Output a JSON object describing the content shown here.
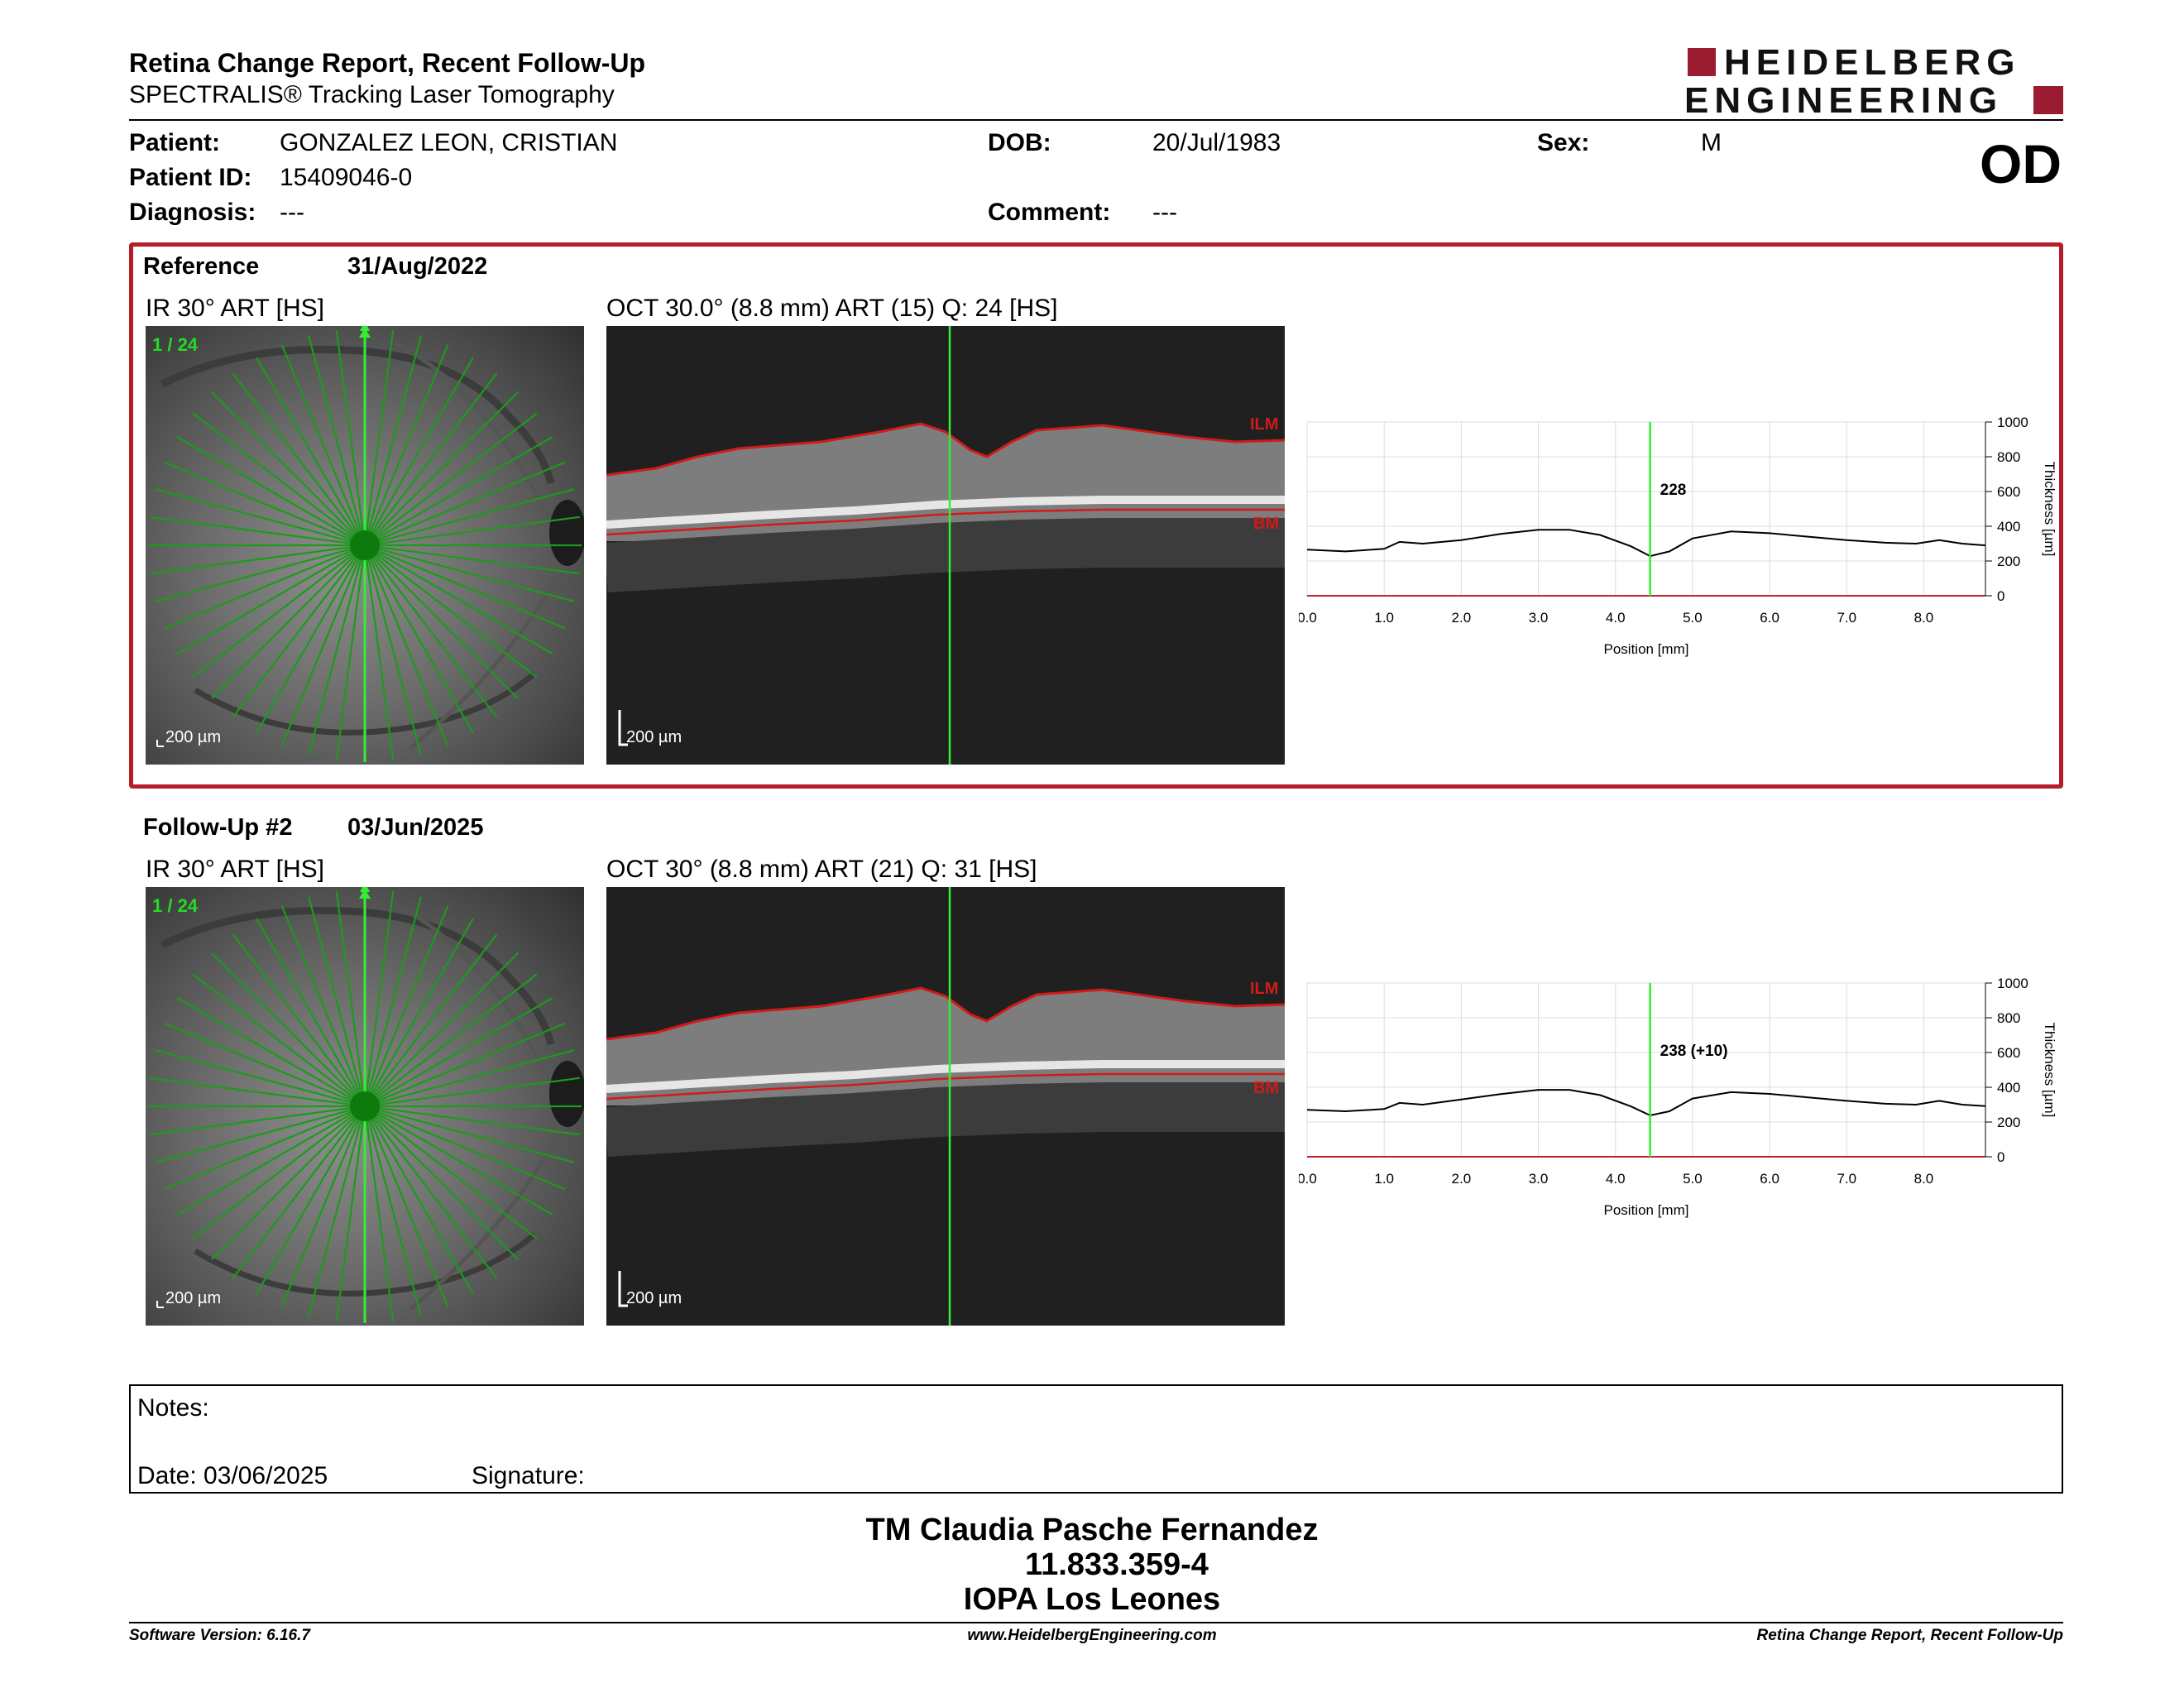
{
  "header": {
    "title": "Retina Change Report, Recent Follow-Up",
    "subtitle": "SPECTRALIS® Tracking Laser Tomography",
    "logo_line1": "HEIDELBERG",
    "logo_line2": "ENGINEERING",
    "eye": "OD"
  },
  "patient": {
    "patient_label": "Patient:",
    "patient_value": "GONZALEZ LEON, CRISTIAN",
    "id_label": "Patient ID:",
    "id_value": "15409046-0",
    "diagnosis_label": "Diagnosis:",
    "diagnosis_value": "---",
    "dob_label": "DOB:",
    "dob_value": "20/Jul/1983",
    "comment_label": "Comment:",
    "comment_value": "---",
    "sex_label": "Sex:",
    "sex_value": "M"
  },
  "reference": {
    "label": "Reference",
    "date": "31/Aug/2022",
    "ir_label": "IR 30° ART [HS]",
    "ir_corner": "1 / 24",
    "ir_scale": "200 µm",
    "oct_label": "OCT 30.0° (8.8 mm) ART (15) Q: 24 [HS]",
    "oct_scale": "200 µm",
    "ilm": "ILM",
    "bm": "BM"
  },
  "followup": {
    "label": "Follow-Up #2",
    "date": "03/Jun/2025",
    "ir_label": "IR 30° ART [HS]",
    "ir_corner": "1 / 24",
    "ir_scale": "200 µm",
    "oct_label": "OCT 30° (8.8 mm) ART (21) Q: 31 [HS]",
    "oct_scale": "200 µm",
    "ilm": "ILM",
    "bm": "BM"
  },
  "chart_data": [
    {
      "type": "line",
      "xlabel": "Position [mm]",
      "ylabel": "Thickness [µm]",
      "xlim": [
        0,
        8.8
      ],
      "ylim": [
        0,
        1000
      ],
      "xticks": [
        "0.0",
        "1.0",
        "2.0",
        "3.0",
        "4.0",
        "5.0",
        "6.0",
        "7.0",
        "8.0"
      ],
      "yticks": [
        "0",
        "200",
        "400",
        "600",
        "800",
        "1000"
      ],
      "grid": true,
      "cursor_x": 4.45,
      "cursor_label": "228",
      "series": [
        {
          "x": [
            0,
            0.5,
            1.0,
            1.2,
            1.5,
            2.0,
            2.5,
            3.0,
            3.4,
            3.8,
            4.2,
            4.45,
            4.7,
            5.0,
            5.5,
            6.0,
            6.5,
            7.0,
            7.5,
            7.9,
            8.2,
            8.5,
            8.8
          ],
          "values": [
            265,
            255,
            270,
            310,
            300,
            320,
            355,
            380,
            380,
            350,
            285,
            228,
            255,
            330,
            370,
            360,
            340,
            320,
            305,
            300,
            320,
            300,
            290
          ]
        }
      ]
    },
    {
      "type": "line",
      "xlabel": "Position [mm]",
      "ylabel": "Thickness [µm]",
      "xlim": [
        0,
        8.8
      ],
      "ylim": [
        0,
        1000
      ],
      "xticks": [
        "0.0",
        "1.0",
        "2.0",
        "3.0",
        "4.0",
        "5.0",
        "6.0",
        "7.0",
        "8.0"
      ],
      "yticks": [
        "0",
        "200",
        "400",
        "600",
        "800",
        "1000"
      ],
      "grid": true,
      "cursor_x": 4.45,
      "cursor_label": "238 (+10)",
      "series": [
        {
          "x": [
            0,
            0.5,
            1.0,
            1.2,
            1.5,
            2.0,
            2.5,
            3.0,
            3.4,
            3.8,
            4.2,
            4.45,
            4.7,
            5.0,
            5.5,
            6.0,
            6.5,
            7.0,
            7.5,
            7.9,
            8.2,
            8.5,
            8.8
          ],
          "values": [
            270,
            262,
            275,
            310,
            300,
            330,
            360,
            385,
            385,
            355,
            290,
            238,
            262,
            335,
            372,
            362,
            342,
            322,
            305,
            300,
            322,
            300,
            292
          ]
        }
      ]
    }
  ],
  "notes": {
    "notes_label": "Notes:",
    "date_label": "Date: 03/06/2025",
    "signature_label": "Signature:"
  },
  "signer": {
    "name": "TM Claudia Pasche Fernandez",
    "id": "11.833.359-4",
    "place": "IOPA Los Leones"
  },
  "footer": {
    "version": "Software Version: 6.16.7",
    "url": "www.HeidelbergEngineering.com",
    "report": "Retina Change Report, Recent Follow-Up"
  },
  "colors": {
    "accent_red": "#b51d2a",
    "scan_green": "#22cc22",
    "plot_line": "#000000"
  }
}
